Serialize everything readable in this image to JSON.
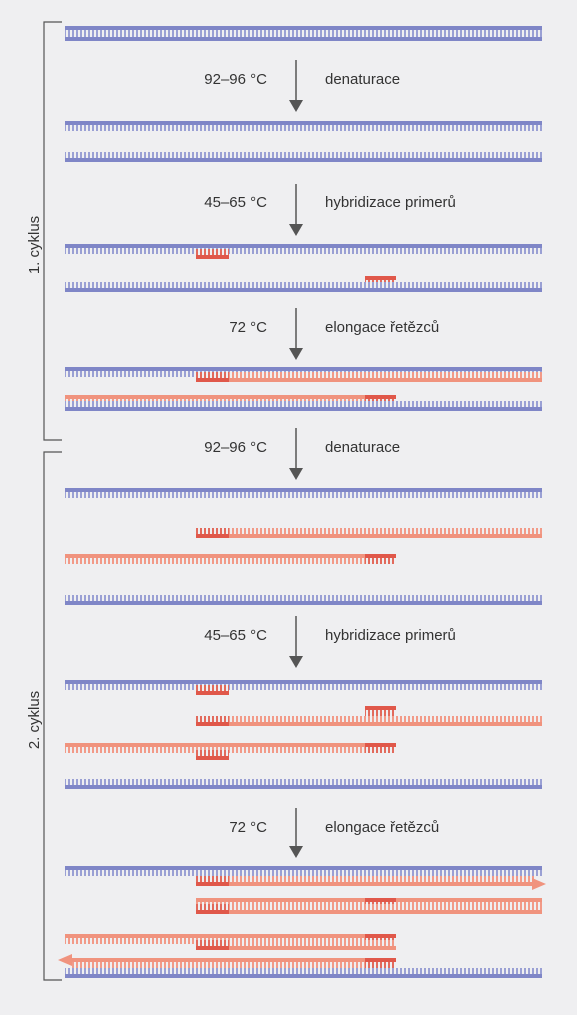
{
  "colors": {
    "blue_strand": "#7f86c7",
    "blue_teeth": "#9aa0d4",
    "red_strand": "#f0937e",
    "red_dark": "#e0584a",
    "text": "#333333",
    "arrow": "#555555"
  },
  "cycles": [
    {
      "label": "1. cyklus"
    },
    {
      "label": "2. cyklus"
    }
  ],
  "steps": [
    {
      "temp": "92–96 °C",
      "name": "denaturace"
    },
    {
      "temp": "45–65 °C",
      "name": "hybridizace primerů"
    },
    {
      "temp": "72 °C",
      "name": "elongace řetězců"
    },
    {
      "temp": "92–96 °C",
      "name": "denaturace"
    },
    {
      "temp": "45–65 °C",
      "name": "hybridizace primerů"
    },
    {
      "temp": "72 °C",
      "name": "elongace řetězců"
    }
  ]
}
